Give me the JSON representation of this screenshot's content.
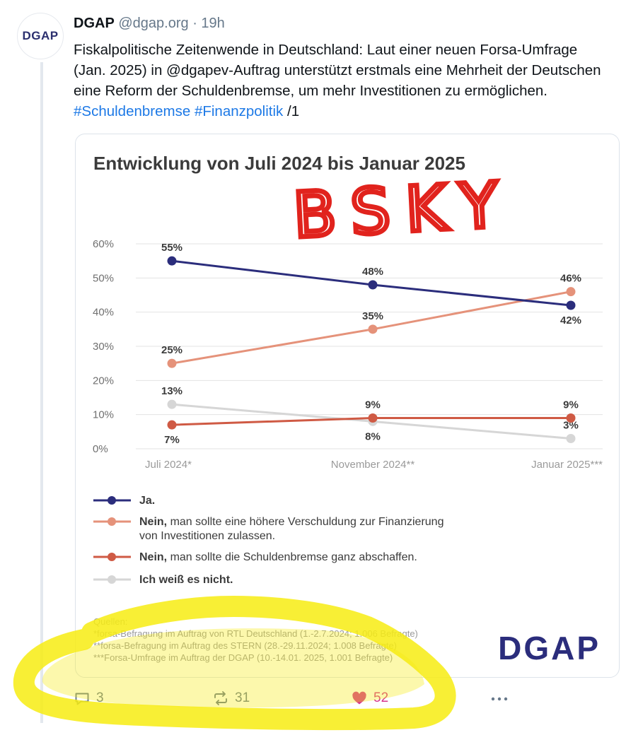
{
  "post": {
    "author": "DGAP",
    "handle": "@dgap.org",
    "separator": "·",
    "time": "19h",
    "avatar_text": "DGAP",
    "text_plain": "Fiskalpolitische Zeitenwende in Deutschland: Laut einer neuen Forsa-Umfrage (Jan. 2025) in @dgapev-Auftrag unterstützt erstmals eine Mehrheit der Deutschen eine Reform der Schuldenbremse, um mehr Investitionen zu ermöglichen.",
    "hashtag1": "#Schuldenbremse",
    "hashtag2": "#Finanzpolitik",
    "suffix": "/1"
  },
  "overlay_text": "BSKY",
  "colors": {
    "ja": "#2b2d7c",
    "nein_more_debt": "#e5927a",
    "nein_abolish": "#cf5a44",
    "dont_know": "#d6d6d6",
    "highlight": "#f7ec12",
    "scribble": "#e1231d",
    "like": "#d6338c",
    "link": "#1d79e6"
  },
  "chart_data": {
    "type": "line",
    "title": "Entwicklung von Juli 2024 bis Januar 2025",
    "categories": [
      "Juli 2024*",
      "November 2024**",
      "Januar 2025***"
    ],
    "ylim": [
      0,
      60
    ],
    "yticks": [
      "0%",
      "10%",
      "20%",
      "30%",
      "40%",
      "50%",
      "60%"
    ],
    "series": [
      {
        "name": "Ja.",
        "bold": "Ja.",
        "rest": "",
        "color": "#2b2d7c",
        "values": [
          55,
          48,
          42
        ],
        "labels": [
          "55%",
          "48%",
          "42%"
        ],
        "label_pos": [
          "above",
          "above",
          "below"
        ]
      },
      {
        "name": "Nein, man sollte eine höhere Verschuldung zur Finanzierung von Investitionen zulassen.",
        "bold": "Nein,",
        "rest": " man sollte eine höhere Verschuldung zur Finanzierung",
        "rest2": "von Investitionen zulassen.",
        "color": "#e5927a",
        "values": [
          25,
          35,
          46
        ],
        "labels": [
          "25%",
          "35%",
          "46%"
        ],
        "label_pos": [
          "above",
          "above",
          "above"
        ]
      },
      {
        "name": "Nein, man sollte die Schuldenbremse ganz abschaffen.",
        "bold": "Nein,",
        "rest": " man sollte die Schuldenbremse ganz abschaffen.",
        "color": "#cf5a44",
        "values": [
          7,
          9,
          9
        ],
        "labels": [
          "7%",
          "9%",
          "9%"
        ],
        "label_pos": [
          "below",
          "above",
          "above"
        ]
      },
      {
        "name": "Ich weiß es nicht.",
        "bold": "Ich weiß es nicht.",
        "rest": "",
        "color": "#d6d6d6",
        "values": [
          13,
          8,
          3
        ],
        "labels": [
          "13%",
          "8%",
          "3%"
        ],
        "label_pos": [
          "above",
          "below",
          "above"
        ]
      }
    ],
    "sources_title": "Quellen:",
    "sources": [
      "*forsa-Befragung im Auftrag von RTL Deutschland (1.-2.7.2024; 1.006 Befragte)",
      "**forsa-Befragung im Auftrag des STERN (28.-29.11.2024; 1.008 Befragte)",
      "***Forsa-Umfrage im Auftrag der DGAP (10.-14.01. 2025, 1.001 Befragte)"
    ],
    "logo": "DGAP"
  },
  "actions": {
    "reply_count": "3",
    "repost_count": "31",
    "like_count": "52",
    "more_icon": "more-icon"
  }
}
